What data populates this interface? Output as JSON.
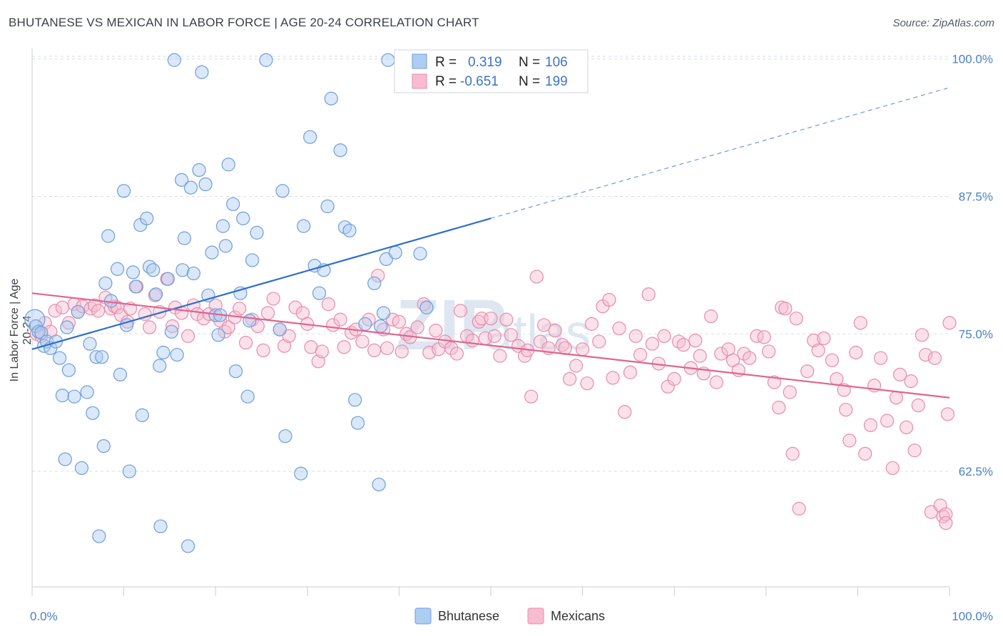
{
  "title": "BHUTANESE VS MEXICAN IN LABOR FORCE | AGE 20-24 CORRELATION CHART",
  "source": "Source: ZipAtlas.com",
  "watermark": {
    "zip": "ZIP",
    "atlas": "atlas"
  },
  "legend": {
    "rows": [
      {
        "r_label": "R =",
        "r_value": "0.319",
        "n_label": "N =",
        "n_value": "106"
      },
      {
        "r_label": "R =",
        "r_value": "-0.651",
        "n_label": "N =",
        "n_value": "199"
      }
    ]
  },
  "bottom_legend": [
    "Bhutanese",
    "Mexicans"
  ],
  "colors": {
    "bhutanese_fill": "#aecdf2",
    "bhutanese_stroke": "#6d9edb",
    "bhutanese_line": "#2f6fcf",
    "mexican_fill": "#f7bcd0",
    "mexican_stroke": "#e98bab",
    "mexican_line": "#e0648f",
    "tick_label": "#4a80c8",
    "grid": "#d7dde5"
  },
  "chart_data": {
    "type": "scatter",
    "title": "BHUTANESE VS MEXICAN IN LABOR FORCE | AGE 20-24 CORRELATION CHART",
    "xlabel": "",
    "ylabel": "In Labor Force | Age 20-24",
    "xlim": [
      0,
      100
    ],
    "ylim": [
      52,
      100.5
    ],
    "x_ticks": [
      0,
      10,
      20,
      30,
      40,
      50,
      60,
      70,
      80,
      90,
      100
    ],
    "x_tick_labels": [
      "0.0%",
      "100.0%"
    ],
    "y_ticks": [
      62.5,
      75.0,
      87.5,
      100.0
    ],
    "y_tick_labels": [
      "62.5%",
      "75.0%",
      "87.5%",
      "100.0%"
    ],
    "grid": "horizontal dashed",
    "legend_position": "top-center",
    "series": [
      {
        "name": "Bhutanese",
        "R": 0.319,
        "N": 106,
        "trend": {
          "x": [
            0,
            50
          ],
          "y": [
            73.6,
            85.5
          ],
          "extended_to": [
            100,
            97.4
          ]
        },
        "points": [
          [
            0.3,
            76.3
          ],
          [
            0.4,
            75.7
          ],
          [
            0.7,
            75.2
          ],
          [
            1,
            75.1
          ],
          [
            1.3,
            73.9
          ],
          [
            1.6,
            74.3
          ],
          [
            2,
            73.7
          ],
          [
            2.6,
            74.3
          ],
          [
            3,
            72.8
          ],
          [
            3.3,
            69.4
          ],
          [
            3.6,
            63.6
          ],
          [
            3.8,
            75.6
          ],
          [
            4,
            71.7
          ],
          [
            4.6,
            69.3
          ],
          [
            5,
            77
          ],
          [
            5.4,
            62.8
          ],
          [
            6,
            69.7
          ],
          [
            6.3,
            74.1
          ],
          [
            6.6,
            67.8
          ],
          [
            7,
            72.9
          ],
          [
            7.3,
            56.6
          ],
          [
            7.6,
            72.9
          ],
          [
            7.8,
            64.8
          ],
          [
            8,
            79.6
          ],
          [
            8.3,
            83.9
          ],
          [
            8.6,
            78
          ],
          [
            9.3,
            80.9
          ],
          [
            9.6,
            71.3
          ],
          [
            10,
            88
          ],
          [
            10.3,
            75.8
          ],
          [
            10.6,
            62.5
          ],
          [
            11,
            80.6
          ],
          [
            11.3,
            79.3
          ],
          [
            11.8,
            84.9
          ],
          [
            12,
            67.6
          ],
          [
            12.5,
            85.5
          ],
          [
            12.8,
            81.1
          ],
          [
            13.2,
            80.8
          ],
          [
            13.5,
            78.6
          ],
          [
            13.9,
            72.1
          ],
          [
            14,
            57.5
          ],
          [
            14.3,
            73.3
          ],
          [
            14.8,
            80
          ],
          [
            15.2,
            75.2
          ],
          [
            15.5,
            99.9
          ],
          [
            15.8,
            73.1
          ],
          [
            16.3,
            89
          ],
          [
            16.4,
            80.8
          ],
          [
            16.6,
            83.7
          ],
          [
            17,
            55.7
          ],
          [
            17.3,
            88.3
          ],
          [
            17.6,
            80.5
          ],
          [
            18.2,
            89.9
          ],
          [
            18.5,
            98.8
          ],
          [
            18.9,
            88.6
          ],
          [
            19.2,
            78.5
          ],
          [
            19.6,
            82.4
          ],
          [
            20,
            76.7
          ],
          [
            20.3,
            74.9
          ],
          [
            20.5,
            76.7
          ],
          [
            20.8,
            84.8
          ],
          [
            21.1,
            83
          ],
          [
            21.4,
            90.4
          ],
          [
            21.9,
            86.8
          ],
          [
            22.2,
            71.6
          ],
          [
            22.7,
            78.7
          ],
          [
            23,
            85.5
          ],
          [
            23.5,
            69.3
          ],
          [
            23.7,
            76.2
          ],
          [
            24,
            81.7
          ],
          [
            24.5,
            84.2
          ],
          [
            25.5,
            99.9
          ],
          [
            27,
            75.4
          ],
          [
            27.3,
            88
          ],
          [
            27.6,
            65.7
          ],
          [
            29.3,
            62.3
          ],
          [
            29.6,
            84.8
          ],
          [
            30.3,
            92.9
          ],
          [
            30.8,
            81.2
          ],
          [
            31.3,
            78.7
          ],
          [
            31.8,
            80.8
          ],
          [
            32.2,
            86.6
          ],
          [
            32.6,
            96.4
          ],
          [
            33.6,
            91.7
          ],
          [
            34.1,
            84.7
          ],
          [
            34.6,
            84.4
          ],
          [
            35.2,
            69
          ],
          [
            35.5,
            66.9
          ],
          [
            36.3,
            75.9
          ],
          [
            37.3,
            79.6
          ],
          [
            37.8,
            61.3
          ],
          [
            38,
            75.7
          ],
          [
            38.3,
            76.9
          ],
          [
            38.6,
            81.8
          ],
          [
            38.8,
            99.9
          ],
          [
            39.6,
            82.4
          ],
          [
            42.3,
            82.3
          ],
          [
            43,
            77.4
          ]
        ]
      },
      {
        "name": "Mexicans",
        "R": -0.651,
        "N": 199,
        "trend": {
          "x": [
            0,
            100
          ],
          "y": [
            78.7,
            69.2
          ]
        },
        "points": [
          [
            0.5,
            75
          ],
          [
            1,
            74.8
          ],
          [
            1.4,
            76
          ],
          [
            2,
            75.2
          ],
          [
            2.5,
            77.1
          ],
          [
            3.3,
            77.4
          ],
          [
            4,
            76
          ],
          [
            4.6,
            77.7
          ],
          [
            5,
            77
          ],
          [
            5.5,
            77.5
          ],
          [
            6.4,
            77.3
          ],
          [
            6.8,
            77.6
          ],
          [
            7.2,
            77.1
          ],
          [
            8,
            78.3
          ],
          [
            8.6,
            77.3
          ],
          [
            9,
            77.5
          ],
          [
            9.3,
            77.4
          ],
          [
            9.7,
            76.7
          ],
          [
            10.4,
            76.1
          ],
          [
            10.7,
            77.3
          ],
          [
            11.4,
            79.3
          ],
          [
            12.3,
            76.8
          ],
          [
            12.8,
            75.6
          ],
          [
            13.4,
            78.5
          ],
          [
            13.9,
            77
          ],
          [
            14.7,
            80
          ],
          [
            15.3,
            75.7
          ],
          [
            15.6,
            77.4
          ],
          [
            16.3,
            76.9
          ],
          [
            17,
            74.8
          ],
          [
            17.6,
            77.6
          ],
          [
            18,
            76.8
          ],
          [
            18.7,
            76.4
          ],
          [
            19.3,
            76.8
          ],
          [
            20,
            77.6
          ],
          [
            20.5,
            76.2
          ],
          [
            21,
            75.2
          ],
          [
            21.4,
            75.6
          ],
          [
            22.1,
            76.5
          ],
          [
            22.6,
            77.3
          ],
          [
            23.3,
            74.2
          ],
          [
            24,
            76.3
          ],
          [
            24.6,
            75.7
          ],
          [
            25.2,
            73.5
          ],
          [
            25.7,
            76.9
          ],
          [
            26.3,
            78.2
          ],
          [
            27,
            75.4
          ],
          [
            27.5,
            73.9
          ],
          [
            28,
            74.8
          ],
          [
            28.7,
            77.4
          ],
          [
            29.5,
            76.9
          ],
          [
            30,
            75.9
          ],
          [
            30.4,
            73.8
          ],
          [
            31.2,
            72.5
          ],
          [
            31.6,
            73.4
          ],
          [
            32.3,
            77.7
          ],
          [
            32.8,
            75.8
          ],
          [
            33.6,
            76.3
          ],
          [
            34,
            73.8
          ],
          [
            34.8,
            75.1
          ],
          [
            35.3,
            75.4
          ],
          [
            36,
            74.3
          ],
          [
            36.7,
            76.3
          ],
          [
            37.3,
            73.5
          ],
          [
            37.7,
            80.3
          ],
          [
            38.3,
            75.4
          ],
          [
            38.7,
            73.7
          ],
          [
            39.3,
            76.3
          ],
          [
            40,
            76.1
          ],
          [
            40.3,
            73.4
          ],
          [
            40.8,
            75
          ],
          [
            41.2,
            74.7
          ],
          [
            42,
            75.6
          ],
          [
            42.7,
            77.7
          ],
          [
            43.3,
            73.3
          ],
          [
            44,
            75.3
          ],
          [
            44.3,
            73.6
          ],
          [
            45,
            74.3
          ],
          [
            45.7,
            73.7
          ],
          [
            46.3,
            73.2
          ],
          [
            46.7,
            77.1
          ],
          [
            47.4,
            74.8
          ],
          [
            48,
            74.4
          ],
          [
            48.7,
            76.1
          ],
          [
            49,
            76.4
          ],
          [
            49.4,
            74.6
          ],
          [
            50,
            76.4
          ],
          [
            50.4,
            74.8
          ],
          [
            51,
            73
          ],
          [
            51.7,
            76.3
          ],
          [
            52.2,
            74.9
          ],
          [
            53,
            73.9
          ],
          [
            53.7,
            73
          ],
          [
            54,
            73.5
          ],
          [
            54.4,
            69.3
          ],
          [
            55,
            80.2
          ],
          [
            55.4,
            74.3
          ],
          [
            55.8,
            75.8
          ],
          [
            56.3,
            73.7
          ],
          [
            57,
            75.3
          ],
          [
            57.8,
            74
          ],
          [
            58.1,
            73.7
          ],
          [
            58.6,
            70.9
          ],
          [
            59.3,
            72.1
          ],
          [
            60,
            73.6
          ],
          [
            60.5,
            70.5
          ],
          [
            61,
            75.9
          ],
          [
            61.8,
            74.3
          ],
          [
            62.2,
            77.5
          ],
          [
            62.9,
            78.1
          ],
          [
            63.3,
            71
          ],
          [
            64,
            75.5
          ],
          [
            64.6,
            67.9
          ],
          [
            65.2,
            71.5
          ],
          [
            65.8,
            74.8
          ],
          [
            66.3,
            73.1
          ],
          [
            67.2,
            78.6
          ],
          [
            67.6,
            74.1
          ],
          [
            68.3,
            72.3
          ],
          [
            68.9,
            74.8
          ],
          [
            69.3,
            70.2
          ],
          [
            70,
            70.9
          ],
          [
            70.5,
            74.3
          ],
          [
            71,
            74
          ],
          [
            71.8,
            71.9
          ],
          [
            72.3,
            74.4
          ],
          [
            72.8,
            73
          ],
          [
            73.2,
            71.4
          ],
          [
            74,
            76.6
          ],
          [
            74.6,
            70.6
          ],
          [
            75.1,
            73.2
          ],
          [
            75.9,
            73.6
          ],
          [
            76.4,
            72.6
          ],
          [
            77,
            71.7
          ],
          [
            77.6,
            73.2
          ],
          [
            78.2,
            72.8
          ],
          [
            79,
            74.8
          ],
          [
            79.8,
            74.7
          ],
          [
            80.3,
            73.4
          ],
          [
            80.9,
            70.6
          ],
          [
            81.4,
            68.3
          ],
          [
            81.7,
            77.4
          ],
          [
            82.1,
            77.3
          ],
          [
            82.6,
            69.7
          ],
          [
            82.9,
            64.1
          ],
          [
            83.3,
            76.4
          ],
          [
            83.6,
            59.1
          ],
          [
            84.5,
            71.6
          ],
          [
            85.2,
            74.4
          ],
          [
            85.7,
            73.5
          ],
          [
            86.3,
            74.6
          ],
          [
            87.2,
            72.6
          ],
          [
            87.7,
            70.9
          ],
          [
            88.5,
            69.9
          ],
          [
            88.7,
            68.1
          ],
          [
            89.1,
            65.3
          ],
          [
            89.8,
            73.3
          ],
          [
            90.3,
            76
          ],
          [
            90.8,
            64.1
          ],
          [
            91.4,
            66.7
          ],
          [
            91.8,
            70.3
          ],
          [
            92.5,
            72.8
          ],
          [
            93.2,
            67.1
          ],
          [
            93.8,
            62.8
          ],
          [
            94.2,
            69.2
          ],
          [
            94.6,
            71.3
          ],
          [
            95.3,
            66.5
          ],
          [
            95.8,
            70.7
          ],
          [
            96.2,
            64.4
          ],
          [
            96.6,
            68.5
          ],
          [
            97,
            74.9
          ],
          [
            97.4,
            73.1
          ],
          [
            98,
            58.8
          ],
          [
            98.4,
            72.8
          ],
          [
            99,
            59.4
          ],
          [
            99.3,
            58.4
          ],
          [
            99.6,
            58.6
          ],
          [
            99.6,
            57.8
          ],
          [
            99.8,
            67.7
          ],
          [
            100,
            76
          ]
        ]
      }
    ]
  }
}
